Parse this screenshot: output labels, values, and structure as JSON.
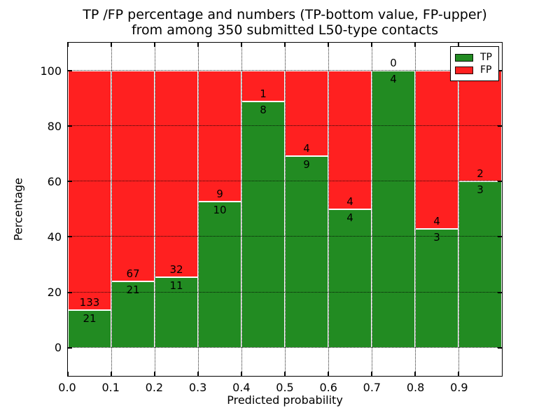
{
  "figure": {
    "title_line1": "TP /FP percentage and numbers (TP-bottom value, FP-upper)",
    "title_line2": "from among 350 submitted L50-type contacts",
    "xlabel": "Predicted probability",
    "ylabel": "Percentage"
  },
  "chart_data": {
    "type": "bar",
    "subtype": "stacked-percentage-histogram",
    "title": "TP /FP percentage and numbers (TP-bottom value, FP-upper) from among 350 submitted L50-type contacts",
    "xlabel": "Predicted probability",
    "ylabel": "Percentage",
    "total_submitted": 350,
    "bin_width": 0.1,
    "xlim": [
      0.0,
      1.0
    ],
    "ylim_display": [
      -10.6,
      110.6
    ],
    "x_tick_labels": [
      "0.0",
      "0.1",
      "0.2",
      "0.3",
      "0.4",
      "0.5",
      "0.6",
      "0.7",
      "0.8",
      "0.9"
    ],
    "y_ticks": [
      0,
      20,
      40,
      60,
      80,
      100
    ],
    "grid": true,
    "grid_style": "dotted",
    "bar_edge_color": "#ffffff",
    "bins": [
      {
        "x_range": "0.0-0.1",
        "tp": 21,
        "fp": 133,
        "tp_percent": 13.64
      },
      {
        "x_range": "0.1-0.2",
        "tp": 21,
        "fp": 67,
        "tp_percent": 23.86
      },
      {
        "x_range": "0.2-0.3",
        "tp": 11,
        "fp": 32,
        "tp_percent": 25.58
      },
      {
        "x_range": "0.3-0.4",
        "tp": 10,
        "fp": 9,
        "tp_percent": 52.63
      },
      {
        "x_range": "0.4-0.5",
        "tp": 8,
        "fp": 1,
        "tp_percent": 88.89
      },
      {
        "x_range": "0.5-0.6",
        "tp": 9,
        "fp": 4,
        "tp_percent": 69.23
      },
      {
        "x_range": "0.6-0.7",
        "tp": 4,
        "fp": 4,
        "tp_percent": 50.0
      },
      {
        "x_range": "0.7-0.8",
        "tp": 4,
        "fp": 0,
        "tp_percent": 100.0
      },
      {
        "x_range": "0.8-0.9",
        "tp": 3,
        "fp": 4,
        "tp_percent": 42.86
      },
      {
        "x_range": "0.9-1.0",
        "tp": 3,
        "fp": 2,
        "tp_percent": 60.0
      }
    ],
    "series": [
      {
        "name": "TP",
        "color": "#228b22",
        "counts": [
          21,
          21,
          11,
          10,
          8,
          9,
          4,
          4,
          3,
          3
        ]
      },
      {
        "name": "FP",
        "color": "#ff2020",
        "counts": [
          133,
          67,
          32,
          9,
          1,
          4,
          4,
          0,
          4,
          2
        ]
      }
    ],
    "legend": {
      "position": "upper right",
      "entries": [
        {
          "label": "TP",
          "color": "#228b22"
        },
        {
          "label": "FP",
          "color": "#ff2020"
        }
      ]
    }
  }
}
